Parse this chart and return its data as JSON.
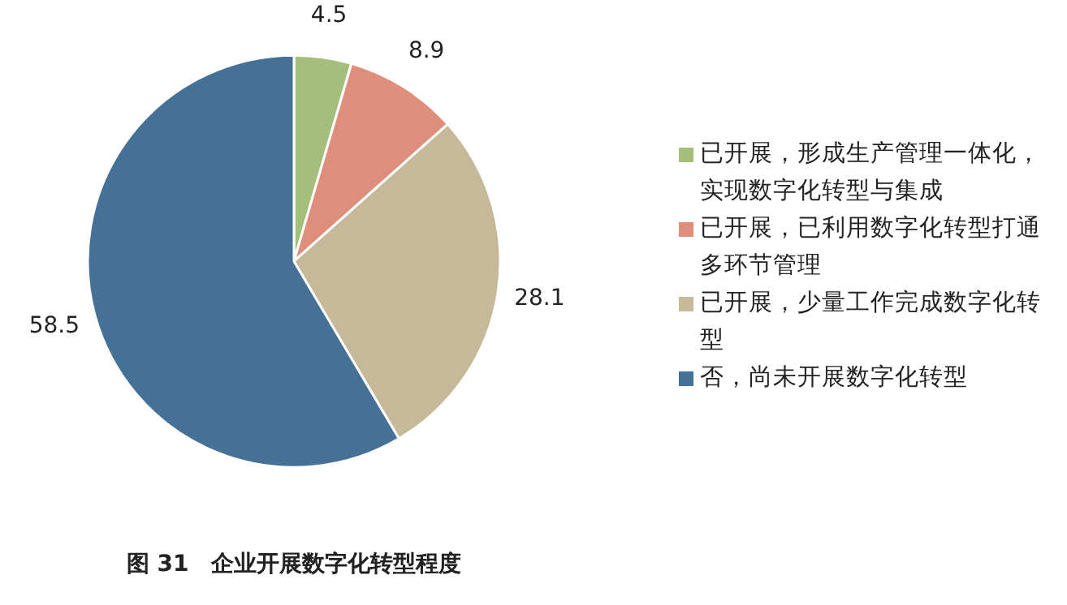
{
  "chart_data": {
    "type": "pie",
    "title": "图 31　企业开展数字化转型程度",
    "categories": [
      "已开展，形成生产管理一体化，实现数字化转型与集成",
      "已开展，已利用数字化转型打通多环节管理",
      "已开展，少量工作完成数字化转型",
      "否，尚未开展数字化转型"
    ],
    "values": [
      4.5,
      8.9,
      28.1,
      58.5
    ],
    "colors": [
      "#a3bf7b",
      "#de8e7b",
      "#c5b99a",
      "#457196"
    ],
    "data_labels": true,
    "legend": "right"
  }
}
